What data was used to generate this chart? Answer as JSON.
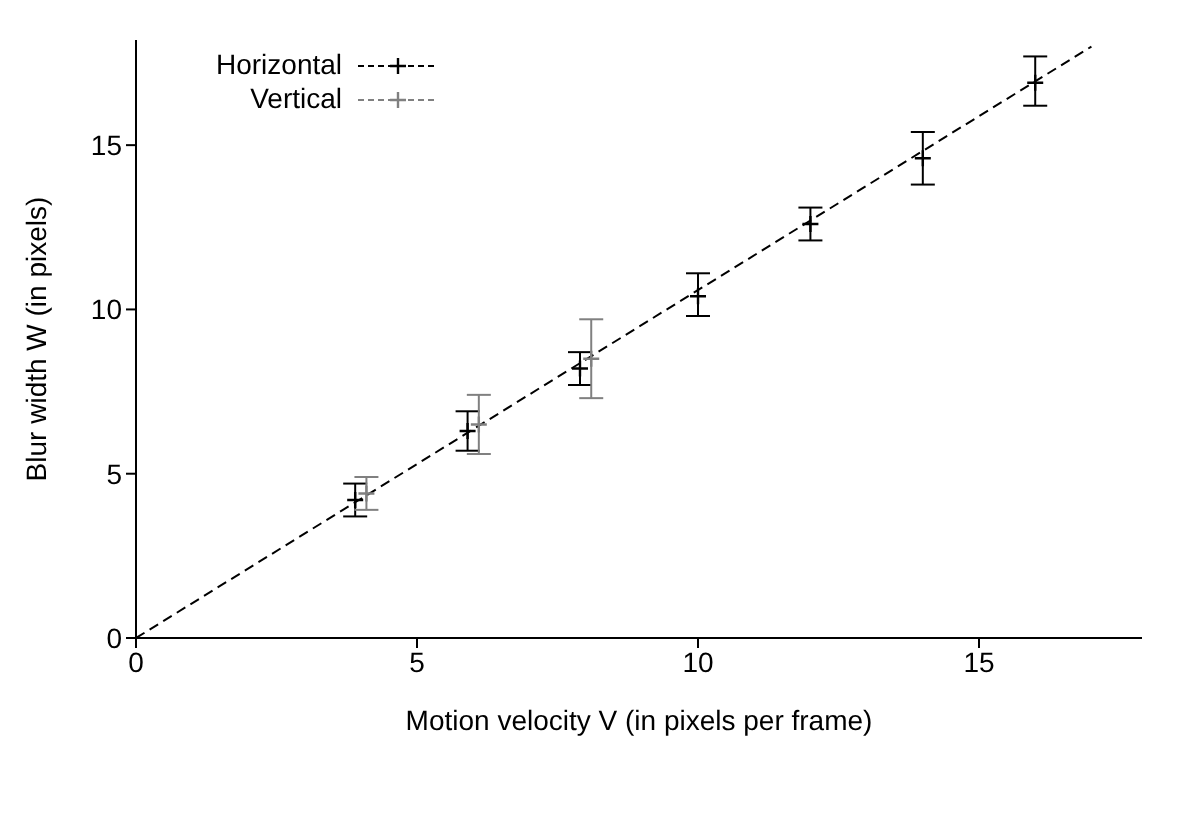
{
  "chart_data": {
    "type": "scatter",
    "xlabel": "Motion velocity V (in pixels per frame)",
    "ylabel": "Blur width W (in pixels)",
    "xlim": [
      0,
      17.9
    ],
    "ylim": [
      0,
      18.2
    ],
    "xticks": [
      0,
      5,
      10,
      15
    ],
    "yticks": [
      0,
      5,
      10,
      15
    ],
    "grid": false,
    "legend": "top left",
    "series": [
      {
        "name": "Horizontal",
        "color": "#000000",
        "marker": "cross",
        "x": [
          3.9,
          5.9,
          7.9,
          10,
          12,
          14,
          16
        ],
        "values": [
          4.2,
          6.3,
          8.2,
          10.4,
          12.6,
          14.6,
          16.9
        ],
        "errors": [
          0.5,
          0.6,
          0.5,
          [
            9.8,
            11.1
          ],
          0.5,
          0.8,
          [
            16.2,
            17.7
          ]
        ]
      },
      {
        "name": "Vertical",
        "color": "#808080",
        "marker": "cross",
        "x": [
          4.1,
          6.1,
          8.1
        ],
        "values": [
          4.4,
          6.5,
          8.5
        ],
        "errors": [
          0.5,
          0.9,
          1.2
        ]
      },
      {
        "type": "line",
        "color": "#000000",
        "line_style": "dashed",
        "marker": "none",
        "x": [
          0,
          17
        ],
        "values": [
          0,
          18
        ]
      }
    ]
  }
}
